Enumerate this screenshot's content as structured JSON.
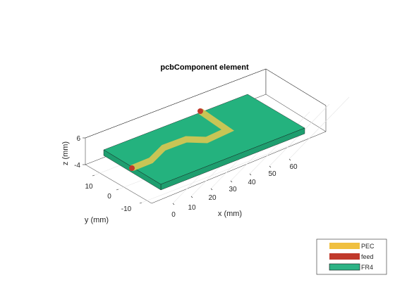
{
  "chart_data": {
    "type": "3d-model",
    "title": "pcbComponent element",
    "xlabel": "x (mm)",
    "ylabel": "y (mm)",
    "zlabel": "z (mm)",
    "xticks": [
      "0",
      "10",
      "20",
      "30",
      "40",
      "50",
      "60"
    ],
    "yticks": [
      "10",
      "0",
      "-10"
    ],
    "zticks": [
      "6",
      "-4"
    ],
    "xlim": [
      -5,
      65
    ],
    "ylim": [
      -15,
      15
    ],
    "zlim": [
      -4,
      6
    ],
    "legend": {
      "placement": "bottom-right",
      "entries": [
        {
          "label": "PEC",
          "color": "#f0c040"
        },
        {
          "label": "feed",
          "color": "#c0392b"
        },
        {
          "label": "FR4",
          "color": "#2db385"
        }
      ]
    },
    "substrate": {
      "material": "FR4",
      "x": [
        -5,
        65
      ],
      "y": [
        -15,
        15
      ]
    },
    "trace": {
      "material": "PEC",
      "path": [
        [
          0,
          0
        ],
        [
          15,
          0
        ],
        [
          20,
          5
        ],
        [
          35,
          5
        ],
        [
          40,
          0
        ],
        [
          55,
          0
        ],
        [
          60,
          5
        ]
      ]
    },
    "feeds": [
      [
        0,
        0
      ],
      [
        60,
        5
      ]
    ]
  },
  "colors": {
    "pcb_top": "#24b27e",
    "pcb_side": "#1e9e6f",
    "trace": "#c8c555",
    "feed": "#c0392b"
  }
}
